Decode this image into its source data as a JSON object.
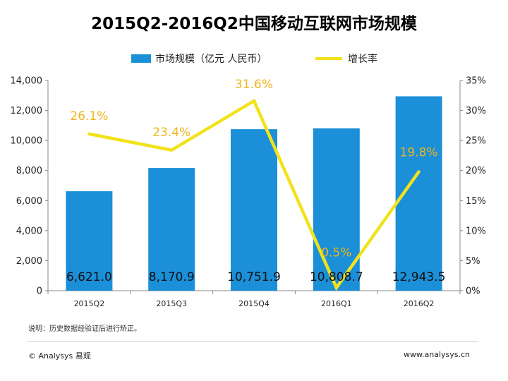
{
  "title": "2015Q2-2016Q2中国移动互联网市场规模",
  "legend": {
    "bar_label": "市场规模（亿元 人民币）",
    "line_label": "增长率"
  },
  "footnote": "说明：历史数据经验证后进行矫正。",
  "footer": {
    "copyright": "© Analysys 易观",
    "website": "www.analysys.cn"
  },
  "colors": {
    "bar": "#1b8fd8",
    "line": "#f2e21b",
    "rate_label": "#f0b41a"
  },
  "chart_data": {
    "type": "bar",
    "title": "2015Q2-2016Q2中国移动互联网市场规模",
    "categories": [
      "2015Q2",
      "2015Q3",
      "2015Q4",
      "2016Q1",
      "2016Q2"
    ],
    "series": [
      {
        "name": "市场规模（亿元 人民币）",
        "type": "bar",
        "axis": "left",
        "values": [
          6621.0,
          8170.9,
          10751.9,
          10808.7,
          12943.5
        ],
        "labels": [
          "6,621.0",
          "8,170.9",
          "10,751.9",
          "10,808.7",
          "12,943.5"
        ]
      },
      {
        "name": "增长率",
        "type": "line",
        "axis": "right",
        "values": [
          26.1,
          23.4,
          31.6,
          0.5,
          19.8
        ],
        "labels": [
          "26.1%",
          "23.4%",
          "31.6%",
          "0.5%",
          "19.8%"
        ]
      }
    ],
    "y_left": {
      "min": 0,
      "max": 14000,
      "ticks": [
        0,
        2000,
        4000,
        6000,
        8000,
        10000,
        12000,
        14000
      ],
      "tick_labels": [
        "0",
        "2,000",
        "4,000",
        "6,000",
        "8,000",
        "10,000",
        "12,000",
        "14,000"
      ]
    },
    "y_right": {
      "min": 0,
      "max": 35,
      "ticks": [
        0,
        5,
        10,
        15,
        20,
        25,
        30,
        35
      ],
      "tick_labels": [
        "0%",
        "5%",
        "10%",
        "15%",
        "20%",
        "25%",
        "30%",
        "35%"
      ]
    },
    "grid": false,
    "legend_position": "top"
  }
}
